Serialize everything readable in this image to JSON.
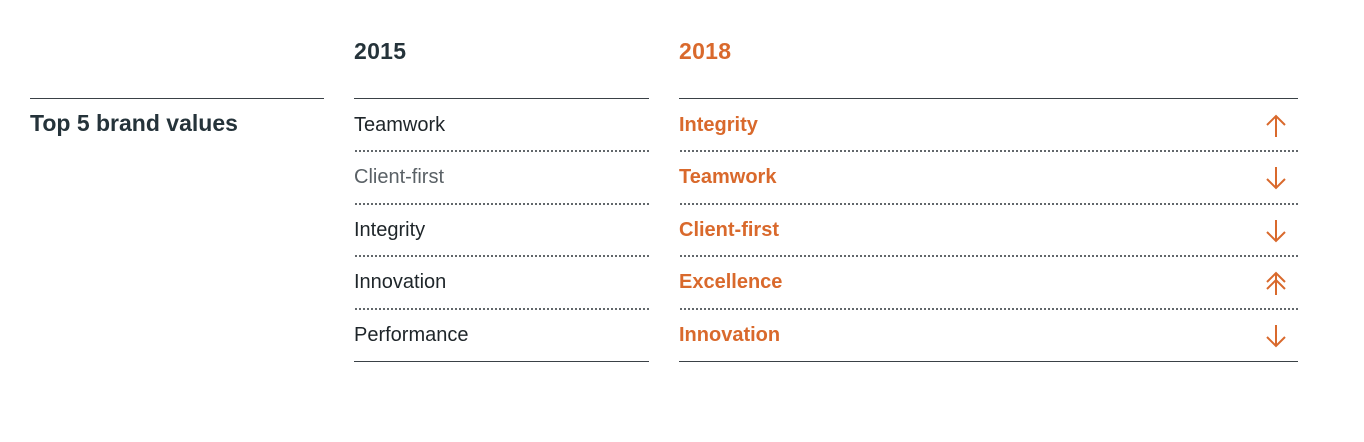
{
  "header": {
    "year_old": "2015",
    "year_new": "2018"
  },
  "row_title": "Top 5 brand values",
  "values_2015": [
    {
      "label": "Teamwork"
    },
    {
      "label": "Client-first"
    },
    {
      "label": "Integrity"
    },
    {
      "label": "Innovation"
    },
    {
      "label": "Performance"
    }
  ],
  "values_2018": [
    {
      "label": "Integrity",
      "change_icon": "arrow-up-icon"
    },
    {
      "label": "Teamwork",
      "change_icon": "arrow-down-icon"
    },
    {
      "label": "Client-first",
      "change_icon": "arrow-down-icon"
    },
    {
      "label": "Excellence",
      "change_icon": "double-arrow-up-icon"
    },
    {
      "label": "Innovation",
      "change_icon": "arrow-down-icon"
    }
  ],
  "colors": {
    "accent": "#d9692c",
    "dark_text": "#25333a",
    "rule": "#3a4146"
  }
}
